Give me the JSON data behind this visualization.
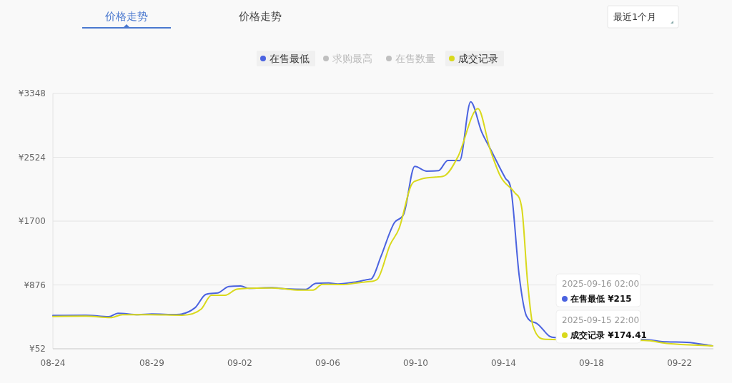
{
  "chart_data": {
    "type": "line",
    "legend": "top",
    "grid": "y",
    "marker": "none",
    "line_style": "solid",
    "xlim": [
      "2025-08-24T12:00",
      "2025-09-23T13:00"
    ],
    "xticks": [
      {
        "value": "2025-08-24T12:00",
        "label": "08-24"
      },
      {
        "value": "2025-08-29",
        "label": "08-29"
      },
      {
        "value": "2025-09-02",
        "label": "09-02"
      },
      {
        "value": "2025-09-06",
        "label": "09-06"
      },
      {
        "value": "2025-09-10",
        "label": "09-10"
      },
      {
        "value": "2025-09-14",
        "label": "09-14"
      },
      {
        "value": "2025-09-18",
        "label": "09-18"
      },
      {
        "value": "2025-09-22",
        "label": "09-22"
      }
    ],
    "ylim": [
      52,
      3348
    ],
    "yticks": [
      {
        "value": 52,
        "label": "¥52"
      },
      {
        "value": 876,
        "label": "¥876"
      },
      {
        "value": 1700,
        "label": "¥1700"
      },
      {
        "value": 2524,
        "label": "¥2524"
      },
      {
        "value": 3348,
        "label": "¥3348"
      }
    ],
    "series": [
      {
        "name": "在售最低",
        "color": "#4b63e0",
        "x": [
          "2025-08-24T12:00",
          "2025-08-26T00:00",
          "2025-08-27T01:00",
          "2025-08-27T11:00",
          "2025-08-28T09:00",
          "2025-08-29T00:00",
          "2025-08-30T03:00",
          "2025-08-30T23:00",
          "2025-08-31T11:00",
          "2025-09-01T00:00",
          "2025-09-01T12:00",
          "2025-09-02T01:00",
          "2025-09-02T10:00",
          "2025-09-03T11:00",
          "2025-09-04T02:00",
          "2025-09-05T00:00",
          "2025-09-05T11:00",
          "2025-09-06T01:00",
          "2025-09-06T11:00",
          "2025-09-07T08:00",
          "2025-09-07T21:00",
          "2025-09-08T00:00",
          "2025-09-08T10:00",
          "2025-09-09T01:00",
          "2025-09-09T11:00",
          "2025-09-09T23:00",
          "2025-09-10T12:00",
          "2025-09-11T01:00",
          "2025-09-11T11:00",
          "2025-09-12T00:00",
          "2025-09-12T12:00",
          "2025-09-13T00:00",
          "2025-09-13T10:00",
          "2025-09-14T02:00",
          "2025-09-14T08:00",
          "2025-09-14T17:00",
          "2025-09-15T01:00",
          "2025-09-15T12:00",
          "2025-09-16T02:00",
          "2025-09-16T08:00",
          "2025-09-20T09:00",
          "2025-09-21T10:00",
          "2025-09-22T08:00",
          "2025-09-23T12:00"
        ],
        "values": [
          482,
          485,
          466,
          510,
          491,
          500,
          494,
          580,
          754,
          773,
          856,
          862,
          832,
          841,
          825,
          819,
          896,
          902,
          887,
          918,
          948,
          957,
          1240,
          1684,
          1792,
          2406,
          2345,
          2351,
          2483,
          2480,
          3240,
          2851,
          2621,
          2252,
          2114,
          994,
          473,
          381,
          215,
          196,
          172,
          141,
          135,
          89
        ]
      },
      {
        "name": "求购最高",
        "color": "#c0c0c0"
      },
      {
        "name": "在售数量",
        "color": "#c0c0c0"
      },
      {
        "name": "成交记录",
        "color": "#d9d91c",
        "x": [
          "2025-08-24T12:00",
          "2025-08-26T00:00",
          "2025-08-27T03:00",
          "2025-08-27T16:00",
          "2025-08-28T22:00",
          "2025-08-30T09:00",
          "2025-08-31T06:00",
          "2025-08-31T17:00",
          "2025-09-01T08:00",
          "2025-09-01T20:00",
          "2025-09-02T08:00",
          "2025-09-03T11:00",
          "2025-09-04T18:00",
          "2025-09-05T08:00",
          "2025-09-05T18:00",
          "2025-09-06T17:00",
          "2025-09-07T08:00",
          "2025-09-07T20:00",
          "2025-09-08T06:00",
          "2025-09-08T20:00",
          "2025-09-09T06:00",
          "2025-09-09T19:00",
          "2025-09-10T03:00",
          "2025-09-10T22:00",
          "2025-09-11T08:00",
          "2025-09-11T22:00",
          "2025-09-12T20:00",
          "2025-09-13T09:00",
          "2025-09-13T21:00",
          "2025-09-14T12:00",
          "2025-09-14T20:00",
          "2025-09-15T02:00",
          "2025-09-15T08:00",
          "2025-09-15T22:00",
          "2025-09-20T09:00",
          "2025-09-21T12:00",
          "2025-09-23T12:00"
        ],
        "values": [
          469,
          473,
          454,
          492,
          492,
          485,
          565,
          743,
          743,
          819,
          832,
          838,
          810,
          810,
          884,
          881,
          902,
          918,
          948,
          1393,
          1608,
          2160,
          2230,
          2268,
          2289,
          2528,
          3152,
          2636,
          2268,
          2068,
          1854,
          933,
          349,
          174.41,
          160,
          119,
          89
        ]
      }
    ],
    "annotations": [
      "价格走势",
      "价格走势",
      "最近1个月",
      "2025-09-16 02:00",
      "在售最低 ¥215",
      "2025-09-15 22:00",
      "成交记录 ¥174.41"
    ]
  }
}
